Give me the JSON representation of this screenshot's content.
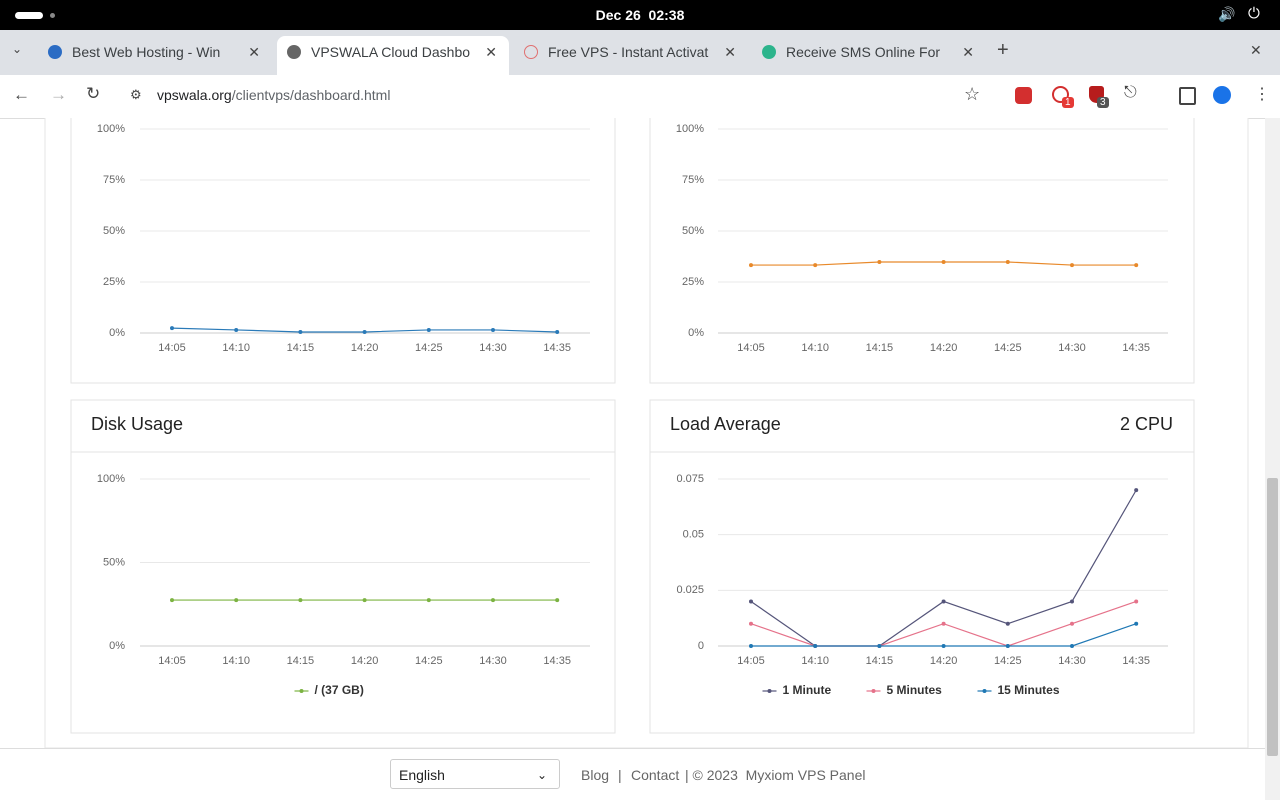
{
  "system_bar": {
    "datetime": "Dec 26  02:38"
  },
  "tabs": [
    {
      "title": "Best Web Hosting - Win"
    },
    {
      "title": "VPSWALA Cloud Dashbo"
    },
    {
      "title": "Free VPS - Instant Activat"
    },
    {
      "title": "Receive SMS Online For"
    }
  ],
  "address_bar": {
    "url_host": "vpswala.org",
    "url_path": "/clientvps/dashboard.html"
  },
  "extension_badges": [
    "1",
    "3"
  ],
  "chart_data": [
    {
      "type": "line",
      "categories": [
        "14:05",
        "14:10",
        "14:15",
        "14:20",
        "14:25",
        "14:30",
        "14:35"
      ],
      "series": [
        {
          "color": "#2a7ab8",
          "values": [
            2.4,
            1.5,
            0.5,
            0.5,
            1.5,
            1.5,
            0.5
          ]
        }
      ],
      "ylim": [
        0,
        100
      ],
      "yticks": [
        {
          "value": 0,
          "label": "0%"
        },
        {
          "value": 25,
          "label": "25%"
        },
        {
          "value": 50,
          "label": "50%"
        },
        {
          "value": 75,
          "label": "75%"
        },
        {
          "value": 100,
          "label": "100%"
        }
      ],
      "grid": true
    },
    {
      "type": "line",
      "categories": [
        "14:05",
        "14:10",
        "14:15",
        "14:20",
        "14:25",
        "14:30",
        "14:35"
      ],
      "series": [
        {
          "color": "#e8892a",
          "values": [
            33.3,
            33.3,
            34.8,
            34.8,
            34.8,
            33.3,
            33.3
          ]
        }
      ],
      "ylim": [
        0,
        100
      ],
      "yticks": [
        {
          "value": 0,
          "label": "0%"
        },
        {
          "value": 25,
          "label": "25%"
        },
        {
          "value": 50,
          "label": "50%"
        },
        {
          "value": 75,
          "label": "75%"
        },
        {
          "value": 100,
          "label": "100%"
        }
      ],
      "grid": true
    },
    {
      "type": "line",
      "title": "Disk Usage",
      "categories": [
        "14:05",
        "14:10",
        "14:15",
        "14:20",
        "14:25",
        "14:30",
        "14:35"
      ],
      "series": [
        {
          "name": "/ (37 GB)",
          "color": "#7cb342",
          "values": [
            27.5,
            27.5,
            27.5,
            27.5,
            27.5,
            27.5,
            27.5
          ]
        }
      ],
      "ylim": [
        0,
        100
      ],
      "yticks": [
        {
          "value": 0,
          "label": "0%"
        },
        {
          "value": 50,
          "label": "50%"
        },
        {
          "value": 100,
          "label": "100%"
        }
      ],
      "grid": true,
      "legend": "bottom"
    },
    {
      "type": "line",
      "title": "Load Average",
      "badge": "2 CPU",
      "categories": [
        "14:05",
        "14:10",
        "14:15",
        "14:20",
        "14:25",
        "14:30",
        "14:35"
      ],
      "series": [
        {
          "name": "1 Minute",
          "color": "#55557a",
          "values": [
            0.02,
            0,
            0,
            0.02,
            0.01,
            0.02,
            0.07
          ]
        },
        {
          "name": "5 Minutes",
          "color": "#e5728a",
          "values": [
            0.01,
            0,
            0,
            0.01,
            0,
            0.01,
            0.02
          ]
        },
        {
          "name": "15 Minutes",
          "color": "#1f78b4",
          "values": [
            0,
            0,
            0,
            0,
            0,
            0,
            0.01
          ]
        }
      ],
      "ylim": [
        0,
        0.075
      ],
      "yticks": [
        0,
        0.025,
        0.05,
        0.075
      ],
      "grid": true,
      "legend": "bottom"
    }
  ],
  "footer": {
    "language": "English",
    "links": [
      "Blog",
      "Contact"
    ],
    "separator": "|",
    "copyright": "| © 2023  Myxiom VPS Panel"
  }
}
